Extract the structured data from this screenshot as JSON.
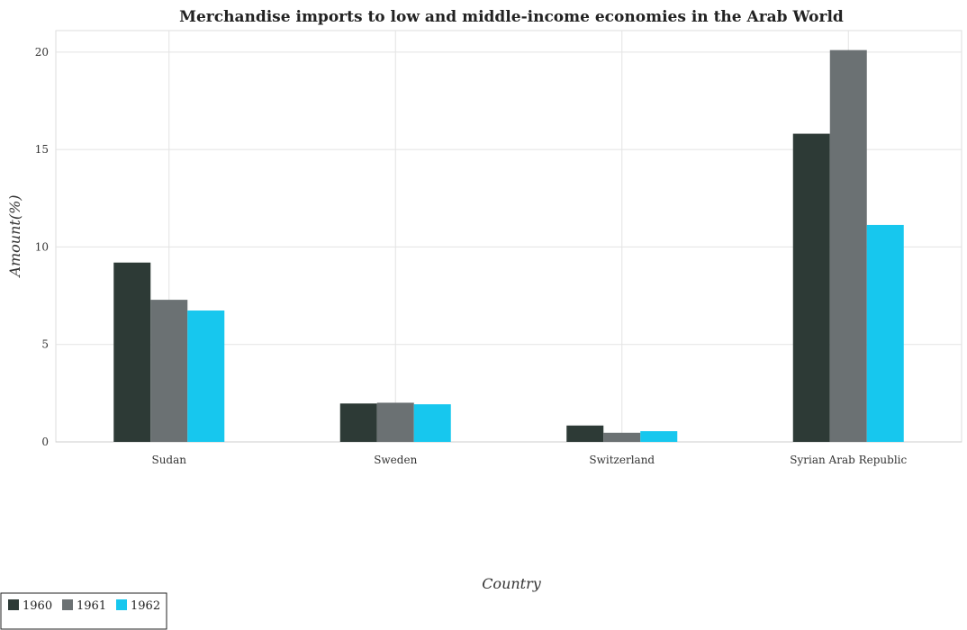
{
  "chart_data": {
    "type": "bar",
    "title": "Merchandise imports to low and middle-income economies in the Arab World",
    "xlabel": "Country",
    "ylabel": "Amount(%)",
    "categories": [
      "Sudan",
      "Sweden",
      "Switzerland",
      "Syrian Arab Republic"
    ],
    "series": [
      {
        "name": "1960",
        "color": "#2d3a36",
        "values": [
          9.2,
          1.97,
          0.84,
          15.81
        ]
      },
      {
        "name": "1961",
        "color": "#6b7173",
        "values": [
          7.29,
          2.01,
          0.47,
          20.1
        ]
      },
      {
        "name": "1962",
        "color": "#17c7ee",
        "values": [
          6.74,
          1.93,
          0.55,
          11.13
        ]
      }
    ],
    "ylim": [
      0,
      21.1
    ],
    "yticks": [
      0,
      5,
      10,
      15,
      20
    ],
    "grid": true,
    "legend": "bottom-left"
  }
}
